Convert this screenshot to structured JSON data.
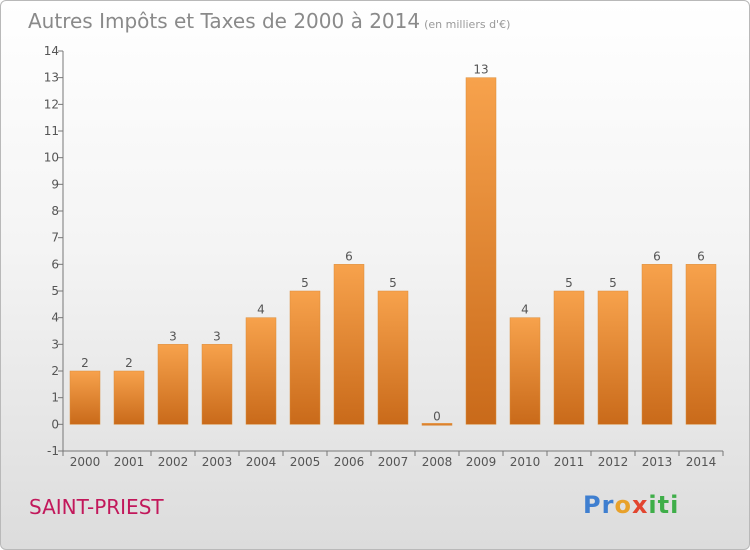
{
  "header": {
    "title": "Autres Impôts et Taxes de 2000 à 2014",
    "unit": "(en milliers d'€)"
  },
  "location": "SAINT-PRIEST",
  "logo": "Proxiti",
  "colors": {
    "bar_top": "#f7a24c",
    "bar_bottom": "#c96a1a",
    "city_text": "#c2185b"
  },
  "chart_data": {
    "type": "bar",
    "title": "Autres Impôts et Taxes de 2000 à 2014",
    "xlabel": "",
    "ylabel": "",
    "categories": [
      "2000",
      "2001",
      "2002",
      "2003",
      "2004",
      "2005",
      "2006",
      "2007",
      "2008",
      "2009",
      "2010",
      "2011",
      "2012",
      "2013",
      "2014"
    ],
    "values": [
      2,
      2,
      3,
      3,
      4,
      5,
      6,
      5,
      0,
      13,
      4,
      5,
      5,
      6,
      6
    ],
    "data_labels": [
      "2",
      "2",
      "3",
      "3",
      "4",
      "5",
      "6",
      "5",
      "0",
      "13",
      "4",
      "5",
      "5",
      "6",
      "6"
    ],
    "ylim": [
      -1,
      14
    ],
    "y_ticks": [
      "-1",
      "0",
      "1",
      "2",
      "3",
      "4",
      "5",
      "6",
      "7",
      "8",
      "9",
      "10",
      "11",
      "12",
      "13",
      "14"
    ],
    "grid": false,
    "legend": "none"
  }
}
